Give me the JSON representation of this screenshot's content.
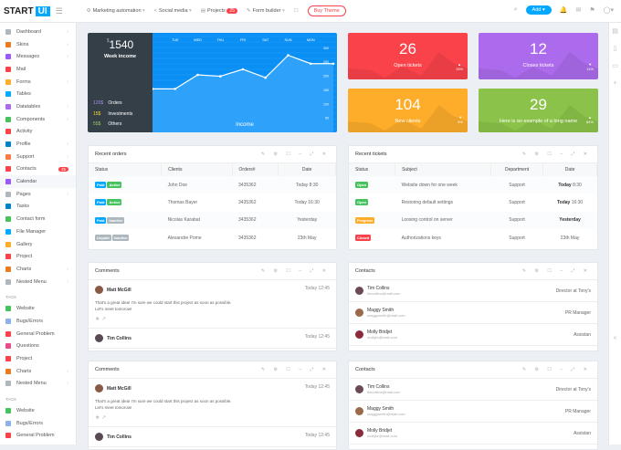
{
  "topbar": {
    "logo_text": "START",
    "logo_badge": "UI",
    "nav": [
      {
        "label": "Marketing automation",
        "icon": "gear-icon"
      },
      {
        "label": "Social media",
        "icon": "share-icon"
      },
      {
        "label": "Projects",
        "icon": "folder-icon",
        "badge": "25"
      },
      {
        "label": "Form builder",
        "icon": "pencil-icon"
      }
    ],
    "buy_label": "Buy Theme",
    "add_label": "Add"
  },
  "sidebar": {
    "items": [
      {
        "label": "Dashboard",
        "color": "#adb7be",
        "chev": true
      },
      {
        "label": "Skins",
        "color": "#e87b1f",
        "chev": true
      },
      {
        "label": "Messages",
        "color": "#9b59f6",
        "chev": true
      },
      {
        "label": "Mail",
        "color": "#fa424a"
      },
      {
        "label": "Forms",
        "color": "#fdad2a",
        "chev": true
      },
      {
        "label": "Tables",
        "color": "#00a8ff"
      },
      {
        "label": "Datatables",
        "color": "#ac6bec",
        "chev": true
      },
      {
        "label": "Components",
        "color": "#46c35f",
        "chev": true
      },
      {
        "label": "Activity",
        "color": "#fa424a"
      },
      {
        "label": "Profile",
        "color": "#0082c6",
        "chev": true
      },
      {
        "label": "Support",
        "color": "#f97b46",
        "chev": true
      },
      {
        "label": "Contacts",
        "color": "#fa424a",
        "badge": "35"
      },
      {
        "label": "Calendar",
        "color": "#9b59f6",
        "active": true
      },
      {
        "label": "Pages",
        "color": "#adb7be",
        "chev": true
      },
      {
        "label": "Tasks",
        "color": "#0082c6"
      },
      {
        "label": "Contact form",
        "color": "#46c35f"
      },
      {
        "label": "File Manager",
        "color": "#00a8ff"
      },
      {
        "label": "Gallery",
        "color": "#fdad2a"
      },
      {
        "label": "Project",
        "color": "#fa424a"
      },
      {
        "label": "Charts",
        "color": "#e87b1f",
        "chev": true
      },
      {
        "label": "Nested Menu",
        "color": "#adb7be",
        "chev": true
      }
    ],
    "tags_heading": "TAGS",
    "tags": [
      {
        "label": "Website",
        "color": "#46c35f"
      },
      {
        "label": "Bugs/Errors",
        "color": "#8ab4e8"
      },
      {
        "label": "General Problem",
        "color": "#fa424a"
      },
      {
        "label": "Questions",
        "color": "#e84c8b"
      },
      {
        "label": "Project",
        "color": "#fa424a"
      },
      {
        "label": "Charts",
        "color": "#e87b1f",
        "chev": true
      },
      {
        "label": "Nested Menu",
        "color": "#adb7be",
        "chev": true
      }
    ],
    "tags2": [
      {
        "label": "Website",
        "color": "#46c35f"
      },
      {
        "label": "Bugs/Errors",
        "color": "#8ab4e8"
      },
      {
        "label": "General Problem",
        "color": "#fa424a"
      }
    ]
  },
  "income": {
    "currency": "$",
    "total": "1540",
    "label": "Week income",
    "stats": [
      {
        "value": "120$",
        "label": "Orders",
        "color": "#a98ff0"
      },
      {
        "value": "15$",
        "label": "Investments",
        "color": "#fdd835"
      },
      {
        "value": "55$",
        "label": "Others",
        "color": "#9ccc65"
      }
    ]
  },
  "chart_data": {
    "type": "area",
    "title": "Income",
    "x": [
      "",
      "TUE",
      "WED",
      "THU",
      "FRI",
      "SAT",
      "SUN",
      "MON",
      ""
    ],
    "values": [
      155,
      155,
      205,
      200,
      225,
      195,
      275,
      245,
      245
    ],
    "yticks": [
      300,
      250,
      200,
      150,
      100,
      50
    ],
    "ylim": [
      0,
      330
    ]
  },
  "tiles": [
    {
      "value": "26",
      "label": "Open tickets",
      "pct": "15%",
      "dir": "up",
      "color": "#fa424a"
    },
    {
      "value": "12",
      "label": "Closes tickets",
      "pct": "11%",
      "dir": "down",
      "color": "#ac6bec"
    },
    {
      "value": "104",
      "label": "New clients",
      "pct": "5%",
      "dir": "down",
      "color": "#fdad2a"
    },
    {
      "value": "29",
      "label": "Here is an example of a long name",
      "pct": "84%",
      "dir": "up",
      "color": "#8bc34a"
    }
  ],
  "orders": {
    "title": "Recent orders",
    "headers": [
      "Status",
      "Clients",
      "Orders#",
      "Date"
    ],
    "rows": [
      {
        "labels": [
          {
            "t": "Paid",
            "c": "#00a8ff"
          },
          {
            "t": "Active",
            "c": "#46c35f"
          }
        ],
        "client": "John Doe",
        "order": "3435362",
        "date": "Today 8:30"
      },
      {
        "labels": [
          {
            "t": "Paid",
            "c": "#00a8ff"
          },
          {
            "t": "Active",
            "c": "#46c35f"
          }
        ],
        "client": "Thomas Bayer",
        "order": "3435362",
        "date": "Today 16:30"
      },
      {
        "labels": [
          {
            "t": "Paid",
            "c": "#00a8ff"
          },
          {
            "t": "Inactive",
            "c": "#adb7be"
          }
        ],
        "client": "Nicolas Karabat",
        "order": "3435362",
        "date": "Yesterday"
      },
      {
        "labels": [
          {
            "t": "Unpaid",
            "c": "#adb7be"
          },
          {
            "t": "Inactive",
            "c": "#adb7be"
          }
        ],
        "client": "Alexandre Pome",
        "order": "3435362",
        "date": "23th May"
      }
    ]
  },
  "tickets": {
    "title": "Recent tickets",
    "headers": [
      "Status",
      "Subject",
      "Department",
      "Date"
    ],
    "rows": [
      {
        "label": {
          "t": "Open",
          "c": "#46c35f"
        },
        "subject": "Website down for one week",
        "dept": "Support",
        "date_b": "Today",
        "date": "8:30"
      },
      {
        "label": {
          "t": "Open",
          "c": "#46c35f"
        },
        "subject": "Restoring default settings",
        "dept": "Support",
        "date_b": "Today",
        "date": "16:30"
      },
      {
        "label": {
          "t": "Progress",
          "c": "#fdad2a"
        },
        "subject": "Loosing control on server",
        "dept": "Support",
        "date_b": "Yesterday",
        "date": ""
      },
      {
        "label": {
          "t": "Closed",
          "c": "#fa424a"
        },
        "subject": "Authorizations keys",
        "dept": "Support",
        "date_b": "",
        "date": "23th May"
      }
    ]
  },
  "comments": {
    "title": "Comments",
    "items": [
      {
        "name": "Matt McGill",
        "time": "Today 12:45",
        "text1": "That's a great idea! I'm sure we could start this project as soon as possible.",
        "text2": "Let's meet tomorow!"
      },
      {
        "name": "Tim Collins",
        "time": "Today 12:45"
      }
    ]
  },
  "contacts": {
    "title": "Contacts",
    "items": [
      {
        "name": "Tim Collins",
        "email": "timcollins@mail.com",
        "role": "Director at Tony's"
      },
      {
        "name": "Maggy Smith",
        "email": "maggysmith@mail.com",
        "role": "PR Manager"
      },
      {
        "name": "Molly Bridjet",
        "email": "mollybr@mail.com",
        "role": "Assistan"
      }
    ]
  }
}
